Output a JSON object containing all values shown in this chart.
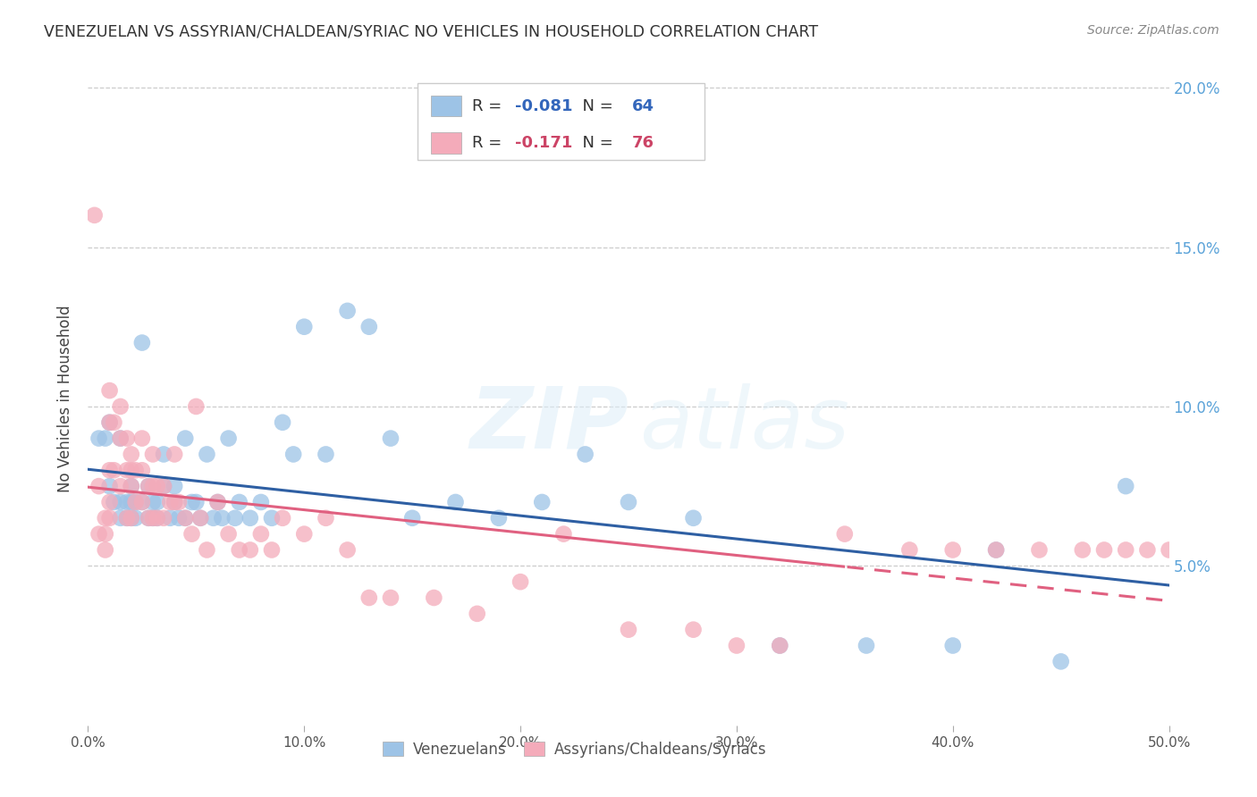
{
  "title": "VENEZUELAN VS ASSYRIAN/CHALDEAN/SYRIAC NO VEHICLES IN HOUSEHOLD CORRELATION CHART",
  "source": "Source: ZipAtlas.com",
  "ylabel": "No Vehicles in Household",
  "xlim": [
    0,
    0.5
  ],
  "ylim": [
    0,
    0.205
  ],
  "x_ticks": [
    0.0,
    0.1,
    0.2,
    0.3,
    0.4,
    0.5
  ],
  "x_tick_labels": [
    "0.0%",
    "10.0%",
    "20.0%",
    "30.0%",
    "40.0%",
    "50.0%"
  ],
  "y_ticks": [
    0.05,
    0.1,
    0.15,
    0.2
  ],
  "y_tick_labels": [
    "5.0%",
    "10.0%",
    "15.0%",
    "20.0%"
  ],
  "blue_R": "-0.081",
  "blue_N": "64",
  "pink_R": "-0.171",
  "pink_N": "76",
  "blue_color": "#9DC3E6",
  "pink_color": "#F4ABBA",
  "blue_line_color": "#2E5FA3",
  "pink_line_color": "#E06080",
  "legend_label_blue": "Venezuelans",
  "legend_label_pink": "Assyrians/Chaldeans/Syriacs",
  "blue_x": [
    0.005,
    0.008,
    0.01,
    0.01,
    0.012,
    0.015,
    0.015,
    0.015,
    0.018,
    0.018,
    0.02,
    0.02,
    0.02,
    0.022,
    0.022,
    0.025,
    0.025,
    0.028,
    0.028,
    0.03,
    0.03,
    0.032,
    0.032,
    0.035,
    0.035,
    0.038,
    0.04,
    0.04,
    0.042,
    0.045,
    0.045,
    0.048,
    0.05,
    0.052,
    0.055,
    0.058,
    0.06,
    0.062,
    0.065,
    0.068,
    0.07,
    0.075,
    0.08,
    0.085,
    0.09,
    0.095,
    0.1,
    0.11,
    0.12,
    0.13,
    0.14,
    0.15,
    0.17,
    0.19,
    0.21,
    0.23,
    0.25,
    0.28,
    0.32,
    0.36,
    0.4,
    0.42,
    0.45,
    0.48
  ],
  "blue_y": [
    0.09,
    0.09,
    0.095,
    0.075,
    0.07,
    0.09,
    0.07,
    0.065,
    0.07,
    0.065,
    0.075,
    0.07,
    0.065,
    0.07,
    0.065,
    0.12,
    0.07,
    0.075,
    0.065,
    0.07,
    0.065,
    0.07,
    0.065,
    0.085,
    0.075,
    0.065,
    0.075,
    0.07,
    0.065,
    0.09,
    0.065,
    0.07,
    0.07,
    0.065,
    0.085,
    0.065,
    0.07,
    0.065,
    0.09,
    0.065,
    0.07,
    0.065,
    0.07,
    0.065,
    0.095,
    0.085,
    0.125,
    0.085,
    0.13,
    0.125,
    0.09,
    0.065,
    0.07,
    0.065,
    0.07,
    0.085,
    0.07,
    0.065,
    0.025,
    0.025,
    0.025,
    0.055,
    0.02,
    0.075
  ],
  "pink_x": [
    0.003,
    0.005,
    0.008,
    0.008,
    0.008,
    0.01,
    0.01,
    0.01,
    0.01,
    0.01,
    0.012,
    0.012,
    0.015,
    0.015,
    0.015,
    0.018,
    0.018,
    0.018,
    0.02,
    0.02,
    0.02,
    0.02,
    0.022,
    0.022,
    0.025,
    0.025,
    0.025,
    0.028,
    0.028,
    0.03,
    0.03,
    0.03,
    0.032,
    0.032,
    0.035,
    0.035,
    0.038,
    0.04,
    0.04,
    0.042,
    0.045,
    0.048,
    0.05,
    0.052,
    0.055,
    0.06,
    0.065,
    0.07,
    0.075,
    0.08,
    0.085,
    0.09,
    0.1,
    0.11,
    0.12,
    0.13,
    0.14,
    0.16,
    0.18,
    0.2,
    0.22,
    0.25,
    0.28,
    0.3,
    0.32,
    0.35,
    0.38,
    0.4,
    0.42,
    0.44,
    0.46,
    0.47,
    0.48,
    0.49,
    0.5,
    0.005
  ],
  "pink_y": [
    0.16,
    0.075,
    0.065,
    0.06,
    0.055,
    0.105,
    0.095,
    0.08,
    0.07,
    0.065,
    0.095,
    0.08,
    0.1,
    0.09,
    0.075,
    0.09,
    0.08,
    0.065,
    0.085,
    0.08,
    0.075,
    0.065,
    0.08,
    0.07,
    0.09,
    0.08,
    0.07,
    0.075,
    0.065,
    0.085,
    0.075,
    0.065,
    0.075,
    0.065,
    0.075,
    0.065,
    0.07,
    0.085,
    0.07,
    0.07,
    0.065,
    0.06,
    0.1,
    0.065,
    0.055,
    0.07,
    0.06,
    0.055,
    0.055,
    0.06,
    0.055,
    0.065,
    0.06,
    0.065,
    0.055,
    0.04,
    0.04,
    0.04,
    0.035,
    0.045,
    0.06,
    0.03,
    0.03,
    0.025,
    0.025,
    0.06,
    0.055,
    0.055,
    0.055,
    0.055,
    0.055,
    0.055,
    0.055,
    0.055,
    0.055,
    0.06
  ]
}
